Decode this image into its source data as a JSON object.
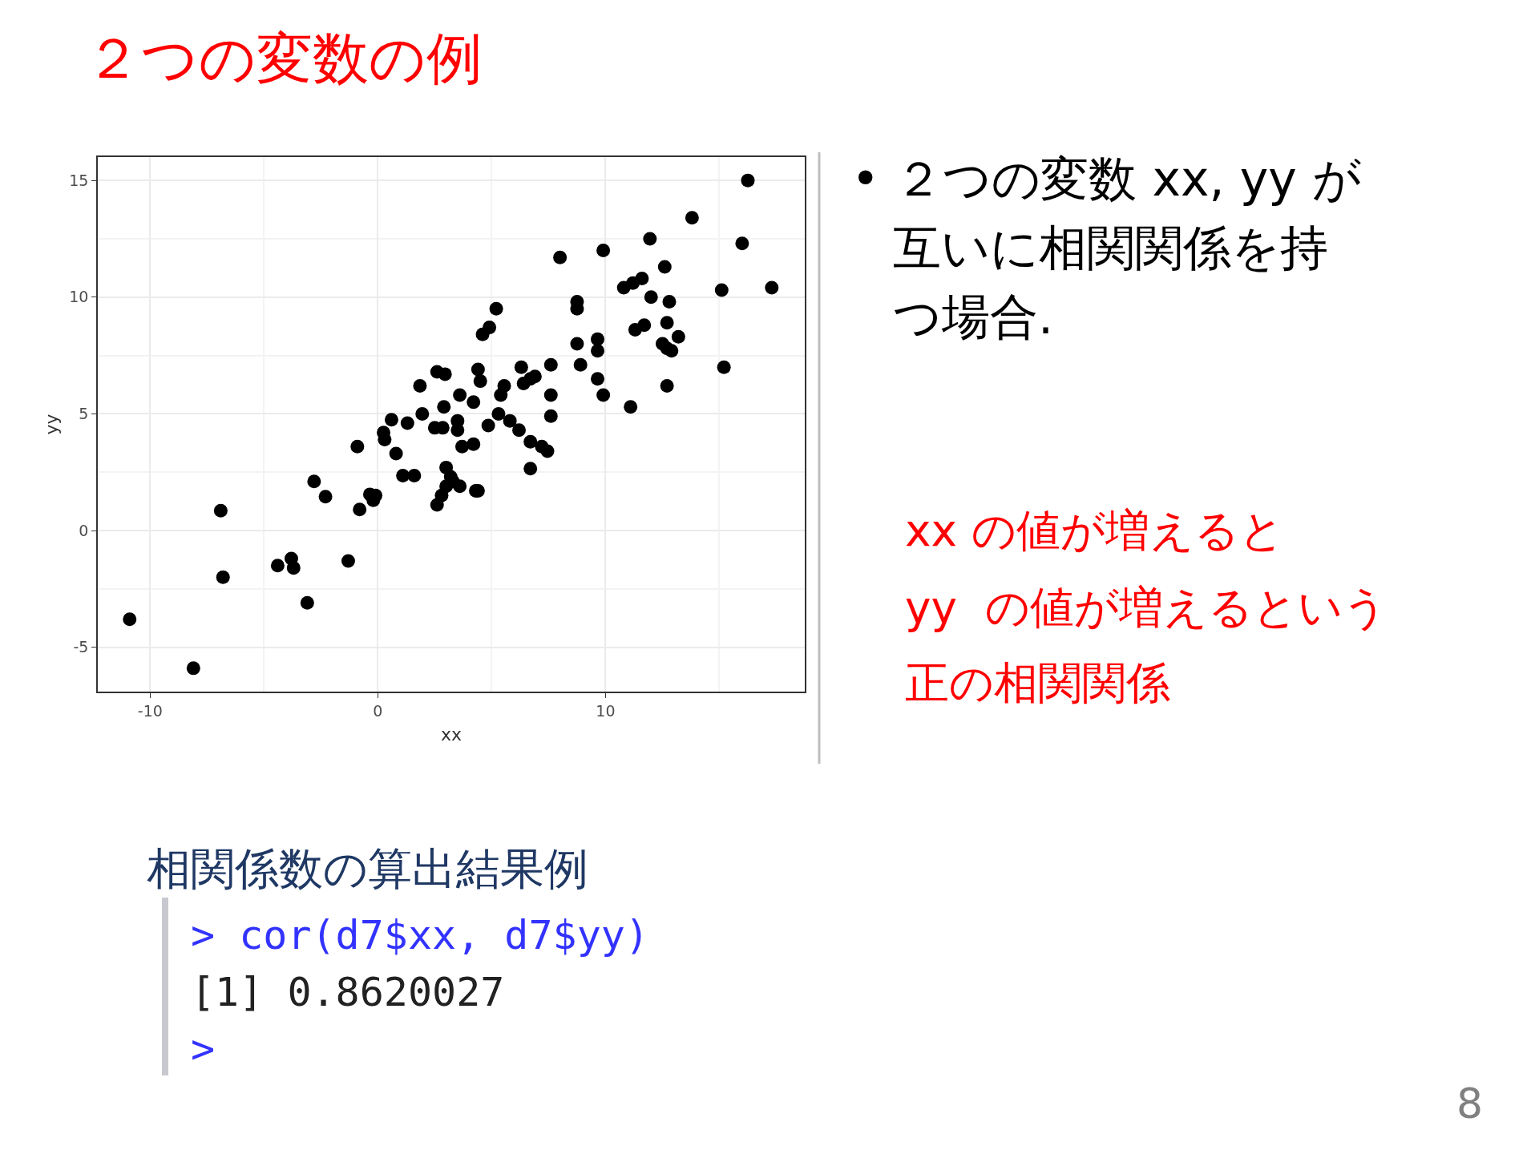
{
  "chart_data": {
    "type": "scatter",
    "title": "２つの変数の例",
    "xlabel": "xx",
    "ylabel": "yy",
    "x": [
      -10.9,
      -8.1,
      -6.9,
      -6.8,
      -4.4,
      -3.8,
      -3.7,
      -3.1,
      -2.8,
      -2.3,
      -1.3,
      -0.9,
      -0.8,
      -0.35,
      -0.1,
      -0.2,
      0.25,
      0.3,
      0.6,
      0.8,
      1.1,
      1.6,
      1.3,
      1.85,
      1.95,
      2.5,
      2.85,
      2.6,
      2.95,
      2.9,
      2.6,
      2.8,
      3.0,
      3.2,
      3.0,
      3.3,
      3.6,
      4.3,
      4.4,
      3.5,
      3.5,
      3.7,
      3.6,
      4.2,
      4.2,
      4.4,
      4.5,
      4.6,
      4.9,
      5.2,
      4.85,
      5.3,
      5.4,
      5.55,
      5.8,
      6.2,
      6.3,
      6.4,
      6.7,
      6.9,
      6.7,
      6.7,
      7.2,
      7.45,
      7.6,
      7.6,
      7.6,
      8.0,
      8.75,
      8.75,
      8.75,
      8.9,
      9.65,
      9.65,
      9.65,
      9.9,
      9.9,
      10.8,
      11.2,
      11.6,
      11.1,
      11.3,
      11.7,
      11.95,
      12.0,
      12.6,
      12.5,
      12.9,
      12.7,
      12.8,
      12.7,
      13.2,
      12.7,
      13.8,
      15.1,
      15.2,
      16.0,
      16.25,
      17.3
    ],
    "values": [
      -3.8,
      -5.9,
      0.85,
      -2.0,
      -1.5,
      -1.2,
      -1.6,
      -3.1,
      2.1,
      1.45,
      -1.3,
      3.6,
      0.9,
      1.55,
      1.5,
      1.3,
      4.2,
      3.9,
      4.75,
      3.3,
      2.35,
      2.35,
      4.6,
      6.2,
      5.0,
      4.4,
      4.4,
      6.8,
      6.7,
      5.3,
      1.1,
      1.5,
      1.9,
      2.3,
      2.7,
      2.1,
      1.9,
      1.7,
      1.7,
      4.7,
      4.3,
      3.6,
      5.8,
      5.5,
      3.7,
      6.9,
      6.4,
      8.4,
      8.7,
      9.5,
      4.5,
      5.0,
      5.8,
      6.2,
      4.7,
      4.3,
      7.0,
      6.3,
      6.5,
      6.6,
      2.65,
      3.8,
      3.6,
      3.4,
      7.1,
      5.8,
      4.9,
      11.7,
      9.8,
      9.5,
      8.0,
      7.1,
      8.2,
      7.7,
      6.5,
      5.8,
      12.0,
      10.4,
      10.6,
      10.8,
      5.3,
      8.6,
      8.8,
      12.5,
      10.0,
      11.3,
      8.0,
      7.7,
      7.8,
      9.8,
      8.9,
      8.3,
      6.2,
      13.4,
      10.3,
      7.0,
      12.3,
      15.0,
      10.4
    ],
    "color": "#000000",
    "marker": "circle",
    "xlim": [
      -12.3,
      18.75
    ],
    "ylim": [
      -6.9,
      16.0
    ],
    "xticks": [
      -10,
      0,
      10
    ],
    "yticks": [
      -5,
      0,
      5,
      10,
      15
    ],
    "grid": true,
    "annotations": [
      "• ２つの変数 xx, yy が",
      "互いに相関関係を持",
      "つ場合.",
      "xx の値が増えると",
      "yy  の値が増えるという",
      "正の相関関係",
      "相関係数の算出結果例",
      "> cor(d7$xx, d7$yy)",
      "[1] 0.8620027",
      ">",
      "8"
    ]
  }
}
